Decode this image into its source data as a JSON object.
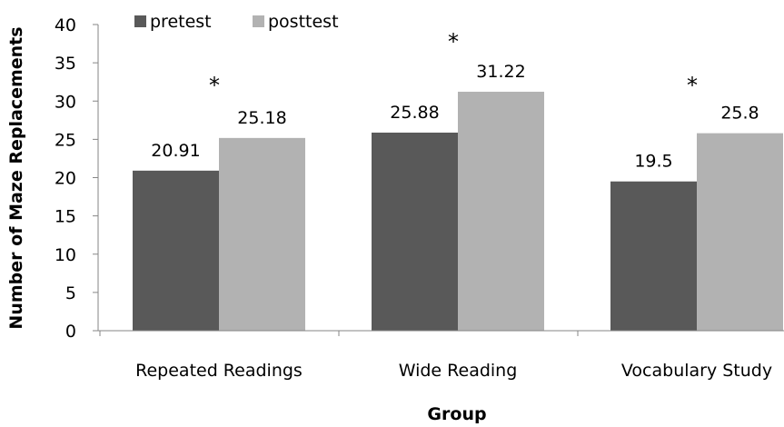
{
  "chart_data": {
    "type": "bar",
    "xlabel": "Group",
    "ylabel": "Number of Maze Replacements",
    "categories": [
      "Repeated Readings",
      "Wide Reading",
      "Vocabulary Study"
    ],
    "series": [
      {
        "name": "pretest",
        "values": [
          20.91,
          25.88,
          19.5
        ],
        "color": "#595959"
      },
      {
        "name": "posttest",
        "values": [
          25.18,
          31.22,
          25.8
        ],
        "color": "#b2b2b2"
      }
    ],
    "data_labels": [
      [
        "20.91",
        "25.88",
        "19.5"
      ],
      [
        "25.18",
        "31.22",
        "25.8"
      ]
    ],
    "annotations": [
      {
        "text": "*",
        "category": "Repeated Readings",
        "y": 33
      },
      {
        "text": "*",
        "category": "Wide Reading",
        "y": 38.7
      },
      {
        "text": "*",
        "category": "Vocabulary Study",
        "y": 33
      }
    ],
    "ylim": [
      0,
      40
    ],
    "yticks": [
      0,
      5,
      10,
      15,
      20,
      25,
      30,
      35,
      40
    ],
    "grid": false,
    "legend_position": "top-left"
  }
}
